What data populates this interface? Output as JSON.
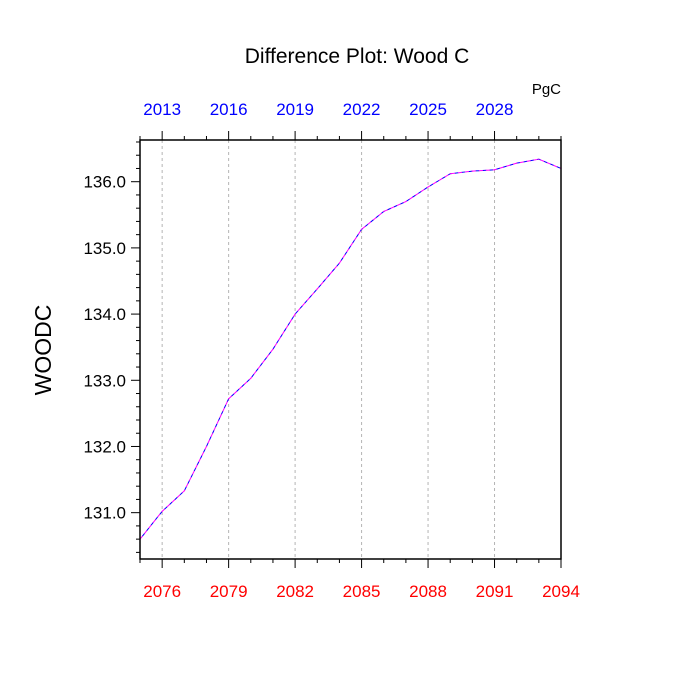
{
  "chart_data": {
    "type": "line",
    "title": "Difference Plot: Wood C",
    "units_label": "PgC",
    "ylabel": "WOODC",
    "xlabel": "",
    "xlim": [
      2075,
      2094
    ],
    "ylim": [
      130.3,
      136.63
    ],
    "grid": "vertical-dashed",
    "bottom_axis": {
      "color": "#ff0000",
      "ticks": [
        2076,
        2079,
        2082,
        2085,
        2088,
        2091,
        2094
      ],
      "tick_labels": [
        "2076",
        "2079",
        "2082",
        "2085",
        "2088",
        "2091",
        "2094"
      ]
    },
    "top_axis": {
      "color": "#0000ff",
      "offset_years": -63,
      "ticks": [
        2076,
        2079,
        2082,
        2085,
        2088,
        2091
      ],
      "tick_labels": [
        "2013",
        "2016",
        "2019",
        "2022",
        "2025",
        "2028"
      ]
    },
    "y_ticks": [
      131.0,
      132.0,
      133.0,
      134.0,
      135.0,
      136.0
    ],
    "y_tick_labels": [
      "131.0",
      "132.0",
      "133.0",
      "134.0",
      "135.0",
      "136.0"
    ],
    "series": [
      {
        "color": "#ff00ff",
        "secondary_color": "#0000ff",
        "style": "dashed",
        "x": [
          2075,
          2076,
          2077,
          2078,
          2079,
          2080,
          2081,
          2082,
          2083,
          2084,
          2085,
          2086,
          2087,
          2088,
          2089,
          2090,
          2091,
          2092,
          2093,
          2094
        ],
        "values": [
          130.6,
          131.02,
          131.33,
          132.0,
          132.72,
          133.03,
          133.47,
          134.0,
          134.38,
          134.77,
          135.28,
          135.55,
          135.7,
          135.92,
          136.12,
          136.16,
          136.18,
          136.28,
          136.34,
          136.2
        ]
      }
    ]
  }
}
